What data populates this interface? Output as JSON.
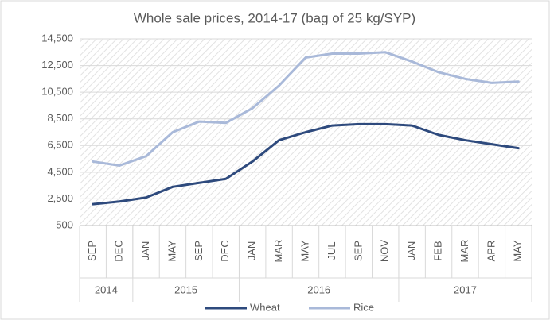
{
  "chart_data": {
    "type": "line",
    "title": "Whole sale prices, 2014-17 (bag of 25 kg/SYP)",
    "categories": [
      "SEP",
      "DEC",
      "JAN",
      "MAY",
      "SEP",
      "DEC",
      "JAN",
      "MAR",
      "MAY",
      "JUL",
      "SEP",
      "NOV",
      "JAN",
      "FEB",
      "MAR",
      "APR",
      "MAY"
    ],
    "groups": [
      {
        "label": "2014",
        "size": 2
      },
      {
        "label": "2015",
        "size": 4
      },
      {
        "label": "2016",
        "size": 6
      },
      {
        "label": "2017",
        "size": 5
      }
    ],
    "series": [
      {
        "name": "Wheat",
        "color": "#2e4a7d",
        "values": [
          2100,
          2300,
          2600,
          3400,
          3700,
          4000,
          5300,
          6900,
          7500,
          8000,
          8100,
          8100,
          8000,
          7300,
          6900,
          6600,
          6300
        ]
      },
      {
        "name": "Rice",
        "color": "#a9b9d9",
        "values": [
          5300,
          5000,
          5700,
          7500,
          8300,
          8200,
          9300,
          11000,
          13100,
          13400,
          13400,
          13500,
          12800,
          12000,
          11500,
          11200,
          11300
        ]
      }
    ],
    "ylim": [
      500,
      14500
    ],
    "yticks": [
      500,
      {
        "value": 2500,
        "label": "2,500"
      },
      {
        "value": 4500,
        "label": "4,500"
      },
      {
        "value": 6500,
        "label": "6,500"
      },
      {
        "value": 8500,
        "label": "8,500"
      },
      {
        "value": 10500,
        "label": "10,500"
      },
      {
        "value": 12500,
        "label": "12,500"
      },
      {
        "value": 14500,
        "label": "14,500"
      }
    ],
    "grid": true,
    "legend": "bottom"
  }
}
